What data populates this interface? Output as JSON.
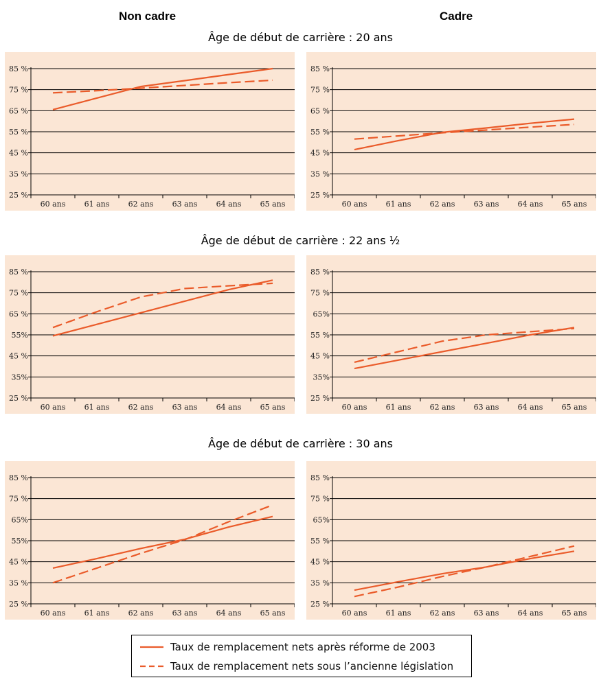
{
  "column_headers": [
    "Non cadre",
    "Cadre"
  ],
  "row_titles": [
    "Âge de début de carrière : 20 ans",
    "Âge de début de carrière : 22 ans ½",
    "Âge de début de carrière : 30 ans"
  ],
  "legend": {
    "solid": "Taux de remplacement nets après réforme de 2003",
    "dashed": "Taux de remplacement nets sous l’ancienne législation"
  },
  "colors": {
    "line": "#ea5b2a",
    "plot_bg": "#fbe6d5",
    "grid": "#000000"
  },
  "chart_data": [
    {
      "type": "line",
      "panel": "Non cadre / 20 ans",
      "categories": [
        "60 ans",
        "61 ans",
        "62 ans",
        "63 ans",
        "64 ans",
        "65 ans"
      ],
      "y_ticks": [
        "25 %",
        "35 %",
        "45 %",
        "55 %",
        "65 %",
        "75 %",
        "85 %"
      ],
      "ylim": [
        25,
        85
      ],
      "grid": true,
      "series": [
        {
          "style": "solid",
          "values": [
            65.5,
            71,
            76.5,
            79.3,
            82.2,
            85
          ]
        },
        {
          "style": "dashed",
          "values": [
            73.5,
            74.5,
            75.7,
            77,
            78.3,
            79.5
          ]
        }
      ]
    },
    {
      "type": "line",
      "panel": "Cadre / 20 ans",
      "categories": [
        "60 ans",
        "61 ans",
        "62 ans",
        "63 ans",
        "64 ans",
        "65 ans"
      ],
      "y_ticks": [
        "25 %",
        "35 %",
        "45 %",
        "55 %",
        "65 %",
        "75 %",
        "85 %"
      ],
      "ylim": [
        25,
        85
      ],
      "grid": true,
      "series": [
        {
          "style": "solid",
          "values": [
            46.5,
            50.8,
            54.7,
            56.8,
            59,
            61
          ]
        },
        {
          "style": "dashed",
          "values": [
            51.5,
            53,
            54.5,
            55.8,
            57.2,
            58.5
          ]
        }
      ]
    },
    {
      "type": "line",
      "panel": "Non cadre / 22 ans ½",
      "categories": [
        "60 ans",
        "61 ans",
        "62 ans",
        "63 ans",
        "64 ans",
        "65 ans"
      ],
      "y_ticks": [
        "25 %",
        "35%",
        "45 %",
        "55%",
        "65 %",
        "75 %",
        "85 %"
      ],
      "ylim": [
        25,
        85
      ],
      "grid": true,
      "series": [
        {
          "style": "solid",
          "values": [
            54.5,
            60,
            65.5,
            71,
            76.5,
            81
          ]
        },
        {
          "style": "dashed",
          "values": [
            58.5,
            66,
            73,
            77,
            78.3,
            79.5
          ]
        }
      ]
    },
    {
      "type": "line",
      "panel": "Cadre / 22 ans ½",
      "categories": [
        "60 ans",
        "61 ans",
        "62 ans",
        "63 ans",
        "64 ans",
        "65 ans"
      ],
      "y_ticks": [
        "25 %",
        "35%",
        "45 %",
        "55 %",
        "65%",
        "75 %",
        "85 %"
      ],
      "ylim": [
        25,
        85
      ],
      "grid": true,
      "series": [
        {
          "style": "solid",
          "values": [
            39,
            43,
            47,
            51,
            55,
            58.5
          ]
        },
        {
          "style": "dashed",
          "values": [
            42,
            47,
            52,
            55,
            56.5,
            58
          ]
        }
      ]
    },
    {
      "type": "line",
      "panel": "Non cadre / 30 ans",
      "categories": [
        "60 ans",
        "61 ans",
        "62 ans",
        "63 ans",
        "64 ans",
        "65 ans"
      ],
      "y_ticks": [
        "25 %",
        "35 %",
        "45 %",
        "55%",
        "65%",
        "75 %",
        "85 %"
      ],
      "ylim": [
        25,
        85
      ],
      "grid": true,
      "series": [
        {
          "style": "solid",
          "values": [
            42,
            46.5,
            51.3,
            55.7,
            61.5,
            66.5
          ]
        },
        {
          "style": "dashed",
          "values": [
            35,
            42,
            49,
            55.5,
            64,
            72
          ]
        }
      ]
    },
    {
      "type": "line",
      "panel": "Cadre / 30 ans",
      "categories": [
        "60 ans",
        "61 ans",
        "62 ans",
        "63 ans",
        "64 ans",
        "65 ans"
      ],
      "y_ticks": [
        "25 %",
        "35 %",
        "45 %",
        "55 %",
        "65%",
        "75 %",
        "85 %"
      ],
      "ylim": [
        25,
        85
      ],
      "grid": true,
      "series": [
        {
          "style": "solid",
          "values": [
            31.5,
            35.5,
            39.3,
            42.5,
            46.5,
            50
          ]
        },
        {
          "style": "dashed",
          "values": [
            28.5,
            33,
            38,
            42.5,
            47.5,
            52.5
          ]
        }
      ]
    }
  ]
}
